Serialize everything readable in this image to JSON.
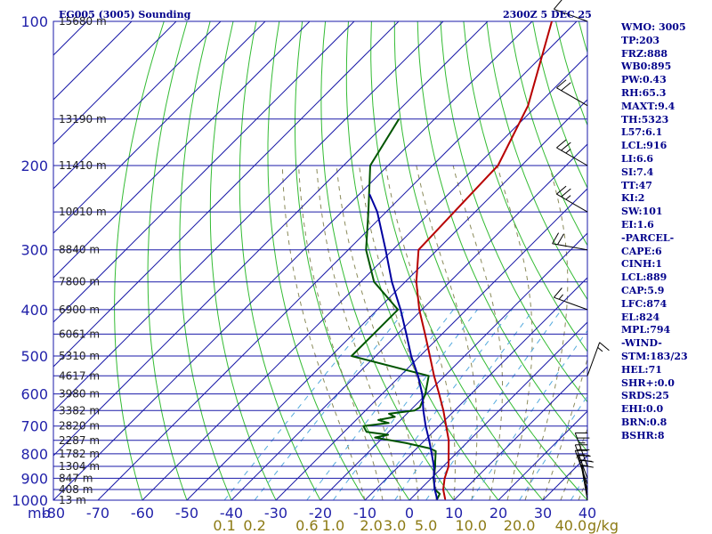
{
  "header": {
    "station_title": "EG005 (3005) Sounding",
    "valid_time": "2300Z  5 DEC 25"
  },
  "colors": {
    "grid": "#1a1aa8",
    "isotherm": "#1a1aa8",
    "dry_adiabat": "#33bb33",
    "moist_adiabat": "#8a8a5a",
    "mixing_ratio": "#55aadd",
    "temperature": "#b80000",
    "dewpoint": "#005500",
    "parcel": "#0000a0",
    "text": "#00008b"
  },
  "axis_unit_label": "mb",
  "mixing_ratio_unit": "g/kg",
  "chart_data": {
    "type": "line",
    "title": "EG005 (3005) Sounding",
    "subtitle": "2300Z  5 DEC 25",
    "y_axis": {
      "label": "mb",
      "scale": "log",
      "ticks": [
        100,
        200,
        300,
        400,
        500,
        600,
        700,
        800,
        900,
        1000
      ],
      "range": [
        1000,
        100
      ]
    },
    "x_axis": {
      "ticks": [
        -80,
        -70,
        -60,
        -50,
        -40,
        -30,
        -20,
        -10,
        0,
        10,
        20,
        30,
        40
      ],
      "range": [
        -80,
        40
      ]
    },
    "mixing_ratio_labels": [
      "0.1",
      "0.2",
      "0.6",
      "1.0",
      "2.0",
      "3.0",
      "5.0",
      "10.0",
      "20.0",
      "40.0"
    ],
    "height_labels": [
      {
        "p": 100,
        "label": "15680 m"
      },
      {
        "p": 160,
        "label": "13190 m"
      },
      {
        "p": 200,
        "label": "11410 m"
      },
      {
        "p": 250,
        "label": "10010 m"
      },
      {
        "p": 300,
        "label": "8840 m"
      },
      {
        "p": 350,
        "label": "7800 m"
      },
      {
        "p": 400,
        "label": "6900 m"
      },
      {
        "p": 450,
        "label": "6061 m"
      },
      {
        "p": 500,
        "label": "5310 m"
      },
      {
        "p": 550,
        "label": "4617 m"
      },
      {
        "p": 600,
        "label": "3980 m"
      },
      {
        "p": 650,
        "label": "3382 m"
      },
      {
        "p": 700,
        "label": "2820 m"
      },
      {
        "p": 750,
        "label": "2287 m"
      },
      {
        "p": 800,
        "label": "1782 m"
      },
      {
        "p": 850,
        "label": "1304 m"
      },
      {
        "p": 900,
        "label": "847 m"
      },
      {
        "p": 950,
        "label": "408 m"
      },
      {
        "p": 1000,
        "label": "13 m"
      }
    ],
    "series": [
      {
        "name": "temperature",
        "points": [
          {
            "p": 995,
            "t": 7.8
          },
          {
            "p": 950,
            "t": 5.2
          },
          {
            "p": 900,
            "t": 3.0
          },
          {
            "p": 850,
            "t": 1.2
          },
          {
            "p": 800,
            "t": -1.6
          },
          {
            "p": 750,
            "t": -4.6
          },
          {
            "p": 700,
            "t": -8.4
          },
          {
            "p": 650,
            "t": -12.5
          },
          {
            "p": 600,
            "t": -17.2
          },
          {
            "p": 550,
            "t": -22.4
          },
          {
            "p": 500,
            "t": -27.8
          },
          {
            "p": 450,
            "t": -33.8
          },
          {
            "p": 400,
            "t": -40.6
          },
          {
            "p": 350,
            "t": -47.5
          },
          {
            "p": 300,
            "t": -54.2
          },
          {
            "p": 250,
            "t": -54.7
          },
          {
            "p": 210,
            "t": -55.2
          },
          {
            "p": 200,
            "t": -55.3
          },
          {
            "p": 150,
            "t": -62.0
          },
          {
            "p": 100,
            "t": -75.6
          }
        ]
      },
      {
        "name": "dewpoint",
        "points": [
          {
            "p": 995,
            "t": 6.0
          },
          {
            "p": 970,
            "t": 5.4
          },
          {
            "p": 950,
            "t": 3.3
          },
          {
            "p": 900,
            "t": 0.5
          },
          {
            "p": 850,
            "t": -1.8
          },
          {
            "p": 830,
            "t": -2.9
          },
          {
            "p": 790,
            "t": -5.1
          },
          {
            "p": 780,
            "t": -7.0
          },
          {
            "p": 760,
            "t": -13.5
          },
          {
            "p": 740,
            "t": -21.8
          },
          {
            "p": 730,
            "t": -19.5
          },
          {
            "p": 720,
            "t": -25.0
          },
          {
            "p": 700,
            "t": -27.0
          },
          {
            "p": 690,
            "t": -22.0
          },
          {
            "p": 680,
            "t": -25.0
          },
          {
            "p": 670,
            "t": -22.0
          },
          {
            "p": 660,
            "t": -24.0
          },
          {
            "p": 650,
            "t": -19.0
          },
          {
            "p": 640,
            "t": -18.5
          },
          {
            "p": 600,
            "t": -20.3
          },
          {
            "p": 550,
            "t": -23.6
          },
          {
            "p": 500,
            "t": -45.4
          },
          {
            "p": 450,
            "t": -45.4
          },
          {
            "p": 400,
            "t": -45.4
          },
          {
            "p": 350,
            "t": -57.0
          },
          {
            "p": 300,
            "t": -66.0
          },
          {
            "p": 250,
            "t": -74.0
          },
          {
            "p": 200,
            "t": -84.0
          },
          {
            "p": 160,
            "t": -88.0
          }
        ]
      },
      {
        "name": "parcel",
        "points": [
          {
            "p": 995,
            "t": 6.0
          },
          {
            "p": 950,
            "t": 3.3
          },
          {
            "p": 900,
            "t": 0.6
          },
          {
            "p": 850,
            "t": -2.1
          },
          {
            "p": 800,
            "t": -5.4
          },
          {
            "p": 750,
            "t": -9.0
          },
          {
            "p": 700,
            "t": -13.0
          },
          {
            "p": 650,
            "t": -17.0
          },
          {
            "p": 600,
            "t": -21.0
          },
          {
            "p": 550,
            "t": -26.0
          },
          {
            "p": 500,
            "t": -32.0
          },
          {
            "p": 450,
            "t": -38.0
          },
          {
            "p": 400,
            "t": -44.8
          },
          {
            "p": 350,
            "t": -53.0
          },
          {
            "p": 300,
            "t": -61.6
          },
          {
            "p": 250,
            "t": -72.0
          },
          {
            "p": 230,
            "t": -77.6
          }
        ]
      }
    ],
    "winds": [
      {
        "p": 1000,
        "dir": 350,
        "kt": 10
      },
      {
        "p": 975,
        "dir": 350,
        "kt": 15
      },
      {
        "p": 950,
        "dir": 345,
        "kt": 20
      },
      {
        "p": 925,
        "dir": 340,
        "kt": 25
      },
      {
        "p": 900,
        "dir": 340,
        "kt": 25
      },
      {
        "p": 850,
        "dir": 340,
        "kt": 25
      },
      {
        "p": 550,
        "dir": 20,
        "kt": 15
      },
      {
        "p": 400,
        "dir": 290,
        "kt": 15
      },
      {
        "p": 300,
        "dir": 280,
        "kt": 20
      },
      {
        "p": 250,
        "dir": 300,
        "kt": 25
      },
      {
        "p": 200,
        "dir": 300,
        "kt": 25
      },
      {
        "p": 150,
        "dir": 300,
        "kt": 20
      },
      {
        "p": 100,
        "dir": 290,
        "kt": 10
      }
    ]
  },
  "side_panel": [
    "WMO: 3005",
    "TP:203",
    "FRZ:888",
    "WB0:895",
    "PW:0.43",
    "RH:65.3",
    "MAXT:9.4",
    "TH:5323",
    "L57:6.1",
    "LCL:916",
    "LI:6.6",
    "SI:7.4",
    "TT:47",
    "KI:2",
    "SW:101",
    "EI:1.6",
    "-PARCEL-",
    "CAPE:6",
    "CINH:1",
    "LCL:889",
    "CAP:5.9",
    "LFC:874",
    "EL:824",
    "MPL:794",
    "-WIND-",
    "STM:183/23",
    "HEL:71",
    "SHR+:0.0",
    "SRDS:25",
    "EHI:0.0",
    "BRN:0.8",
    "BSHR:8"
  ]
}
